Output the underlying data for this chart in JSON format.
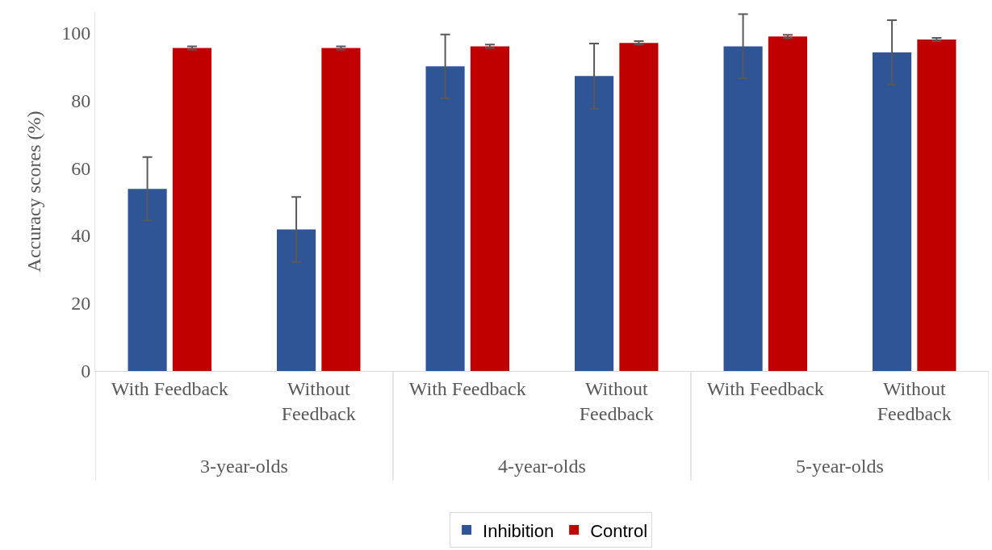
{
  "chart_data": {
    "type": "bar",
    "ylabel": "Accuracy scores (%)",
    "categories": [
      "With Feedback",
      "Without Feedback",
      "With Feedback",
      "Without Feedback",
      "With Feedback",
      "Without Feedback"
    ],
    "annotations": [
      "3-year-olds",
      "4-year-olds",
      "5-year-olds"
    ],
    "series": [
      {
        "name": "Inhibition",
        "color": "#2f5597",
        "values": [
          53.8,
          41.8,
          90.0,
          87.1,
          95.9,
          94.1
        ],
        "errors": [
          9.4,
          9.6,
          9.4,
          9.6,
          9.5,
          9.5
        ]
      },
      {
        "name": "Control",
        "color": "#c00000",
        "values": [
          95.4,
          95.4,
          95.9,
          96.9,
          98.8,
          97.9
        ],
        "errors": [
          0.5,
          0.5,
          0.5,
          0.5,
          0.5,
          0.5
        ]
      }
    ],
    "ylim": [
      0,
      106
    ],
    "yticks": [
      0,
      20,
      40,
      60,
      80,
      100
    ],
    "grid": false,
    "legend": "bottom"
  }
}
